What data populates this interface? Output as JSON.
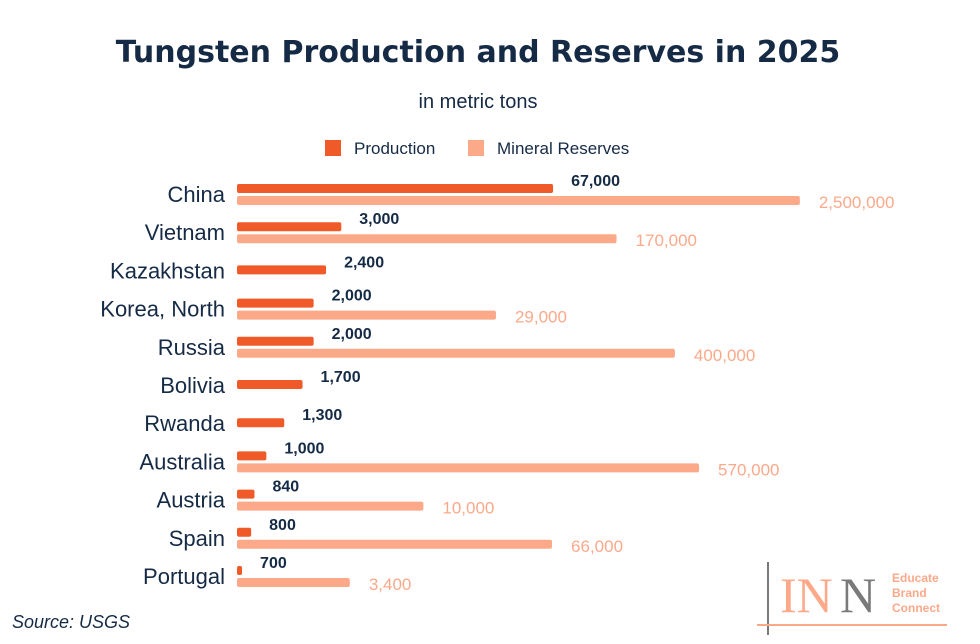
{
  "chart_data": {
    "type": "bar",
    "orientation": "horizontal",
    "title": "Tungsten Production and Reserves in 2025",
    "subtitle": "in metric tons",
    "scale": "log",
    "legend_position": "top",
    "grid": false,
    "categories": [
      "China",
      "Vietnam",
      "Kazakhstan",
      "Korea, North",
      "Russia",
      "Bolivia",
      "Rwanda",
      "Australia",
      "Austria",
      "Spain",
      "Portugal"
    ],
    "series": [
      {
        "name": "Production",
        "color": "#f05a28",
        "values": [
          67000,
          3000,
          2400,
          2000,
          2000,
          1700,
          1300,
          1000,
          840,
          800,
          700
        ],
        "labels": [
          "67,000",
          "3,000",
          "2,400",
          "2,000",
          "2,000",
          "1,700",
          "1,300",
          "1,000",
          "840",
          "800",
          "700"
        ]
      },
      {
        "name": "Mineral Reserves",
        "color": "#fca98a",
        "values": [
          2500000,
          170000,
          null,
          29000,
          400000,
          null,
          null,
          570000,
          10000,
          66000,
          3400
        ],
        "labels": [
          "2,500,000",
          "170,000",
          "",
          "29,000",
          "400,000",
          "",
          "",
          "570,000",
          "10,000",
          "66,000",
          "3,400"
        ]
      }
    ],
    "source": "Source: USGS"
  },
  "logo": {
    "letters": "INN",
    "tagline": [
      "Educate",
      "Brand",
      "Connect"
    ]
  }
}
